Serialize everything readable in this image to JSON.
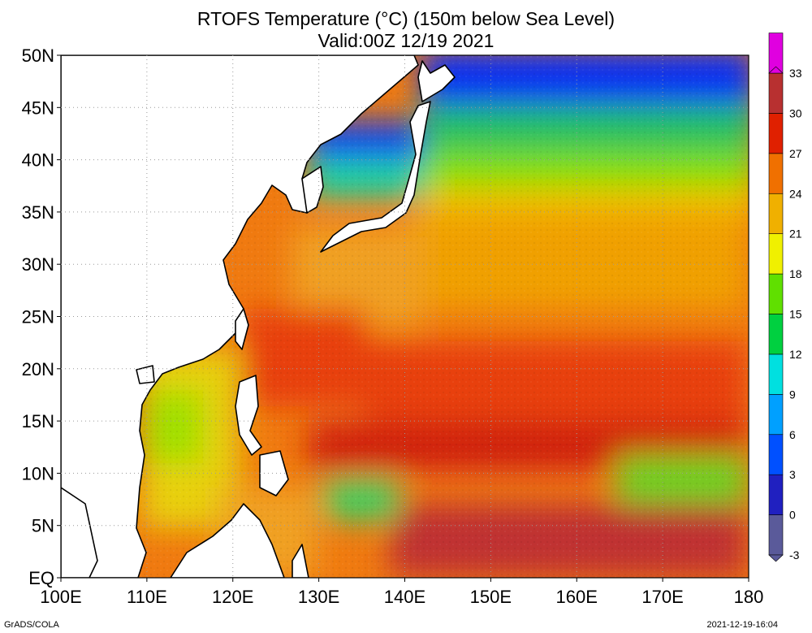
{
  "title": {
    "line1": "RTOFS Temperature (°C) (150m below Sea Level)",
    "line2": "Valid:00Z 12/19 2021"
  },
  "map": {
    "extent": {
      "lon_min": 100,
      "lon_max": 180,
      "lat_min": 0,
      "lat_max": 50
    },
    "lat_labels": [
      "EQ",
      "5N",
      "10N",
      "15N",
      "20N",
      "25N",
      "30N",
      "35N",
      "40N",
      "45N",
      "50N"
    ],
    "lon_labels": [
      "100E",
      "110E",
      "120E",
      "130E",
      "140E",
      "150E",
      "160E",
      "170E",
      "180"
    ],
    "gridlines": "dotted",
    "land_color": "#ffffff",
    "coastline_color": "#000000"
  },
  "colorbar": {
    "labels": [
      "-3",
      "0",
      "3",
      "6",
      "9",
      "12",
      "15",
      "18",
      "21",
      "24",
      "27",
      "30",
      "33"
    ],
    "colors": [
      "#5a5a9a",
      "#2020c0",
      "#0050ff",
      "#00a0ff",
      "#00e0e0",
      "#00d040",
      "#60e000",
      "#f0f000",
      "#f0b000",
      "#f07000",
      "#e02000",
      "#b83030",
      "#e000e0"
    ]
  },
  "footer": {
    "left": "GrADS/COLA",
    "right": "2021-12-19-16:04"
  }
}
